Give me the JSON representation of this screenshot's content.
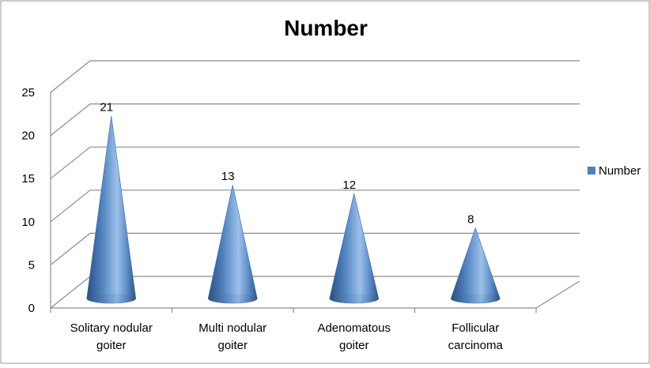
{
  "chart_data": {
    "type": "bar",
    "shape": "cone-3d",
    "title": "Number",
    "categories": [
      [
        "Solitary nodular",
        "goiter"
      ],
      [
        "Multi nodular",
        "goiter"
      ],
      [
        "Adenomatous",
        "goiter"
      ],
      [
        "Follicular",
        "carcinoma"
      ]
    ],
    "series": [
      {
        "name": "Number",
        "values": [
          21,
          13,
          12,
          8
        ],
        "color": "#4f81bd"
      }
    ],
    "ylim": [
      0,
      25
    ],
    "yticks": [
      0,
      5,
      10,
      15,
      20,
      25
    ],
    "grid": true,
    "legend": "right",
    "xlabel": "",
    "ylabel": ""
  }
}
